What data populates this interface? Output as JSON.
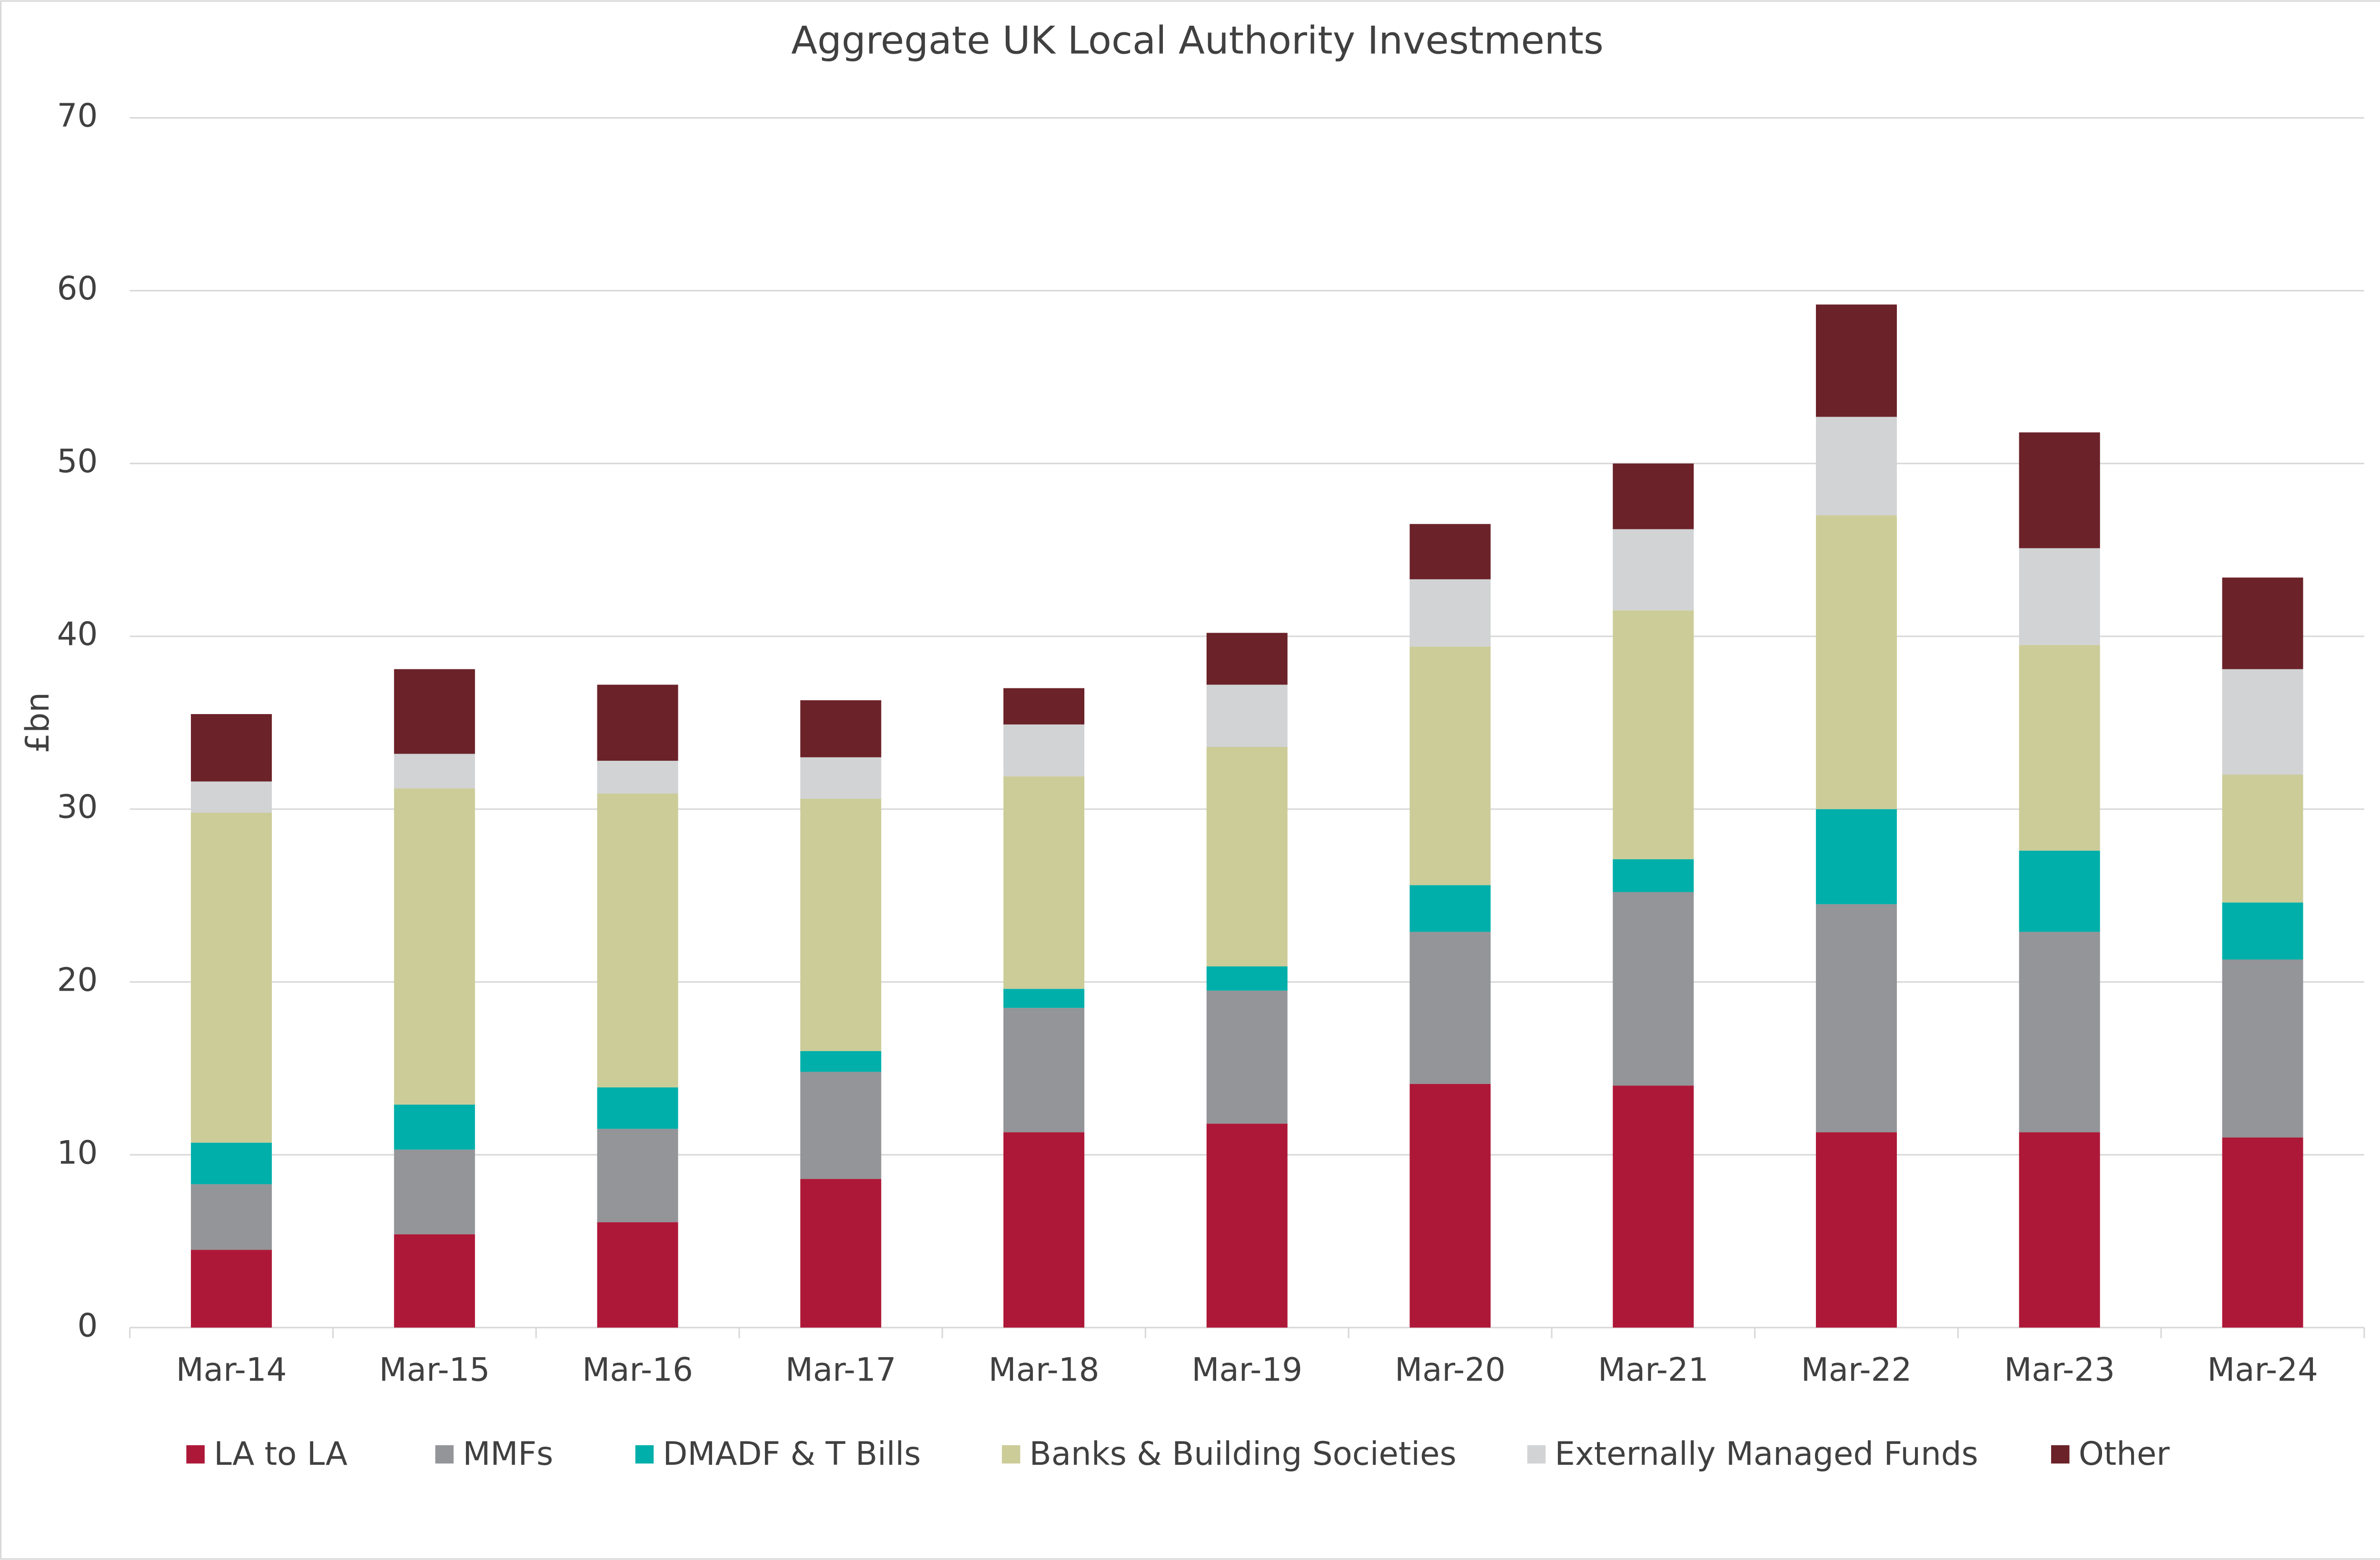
{
  "chart_data": {
    "type": "stacked-bar",
    "title": "Aggregate UK Local Authority Investments",
    "y_label": "£bn",
    "categories": [
      "Mar-14",
      "Mar-15",
      "Mar-16",
      "Mar-17",
      "Mar-18",
      "Mar-19",
      "Mar-20",
      "Mar-21",
      "Mar-22",
      "Mar-23",
      "Mar-24"
    ],
    "series": [
      {
        "name": "LA to LA",
        "color": "#ae1838",
        "values": [
          4.5,
          5.4,
          6.1,
          8.6,
          11.3,
          11.8,
          14.1,
          14.0,
          11.3,
          11.3,
          11.0
        ]
      },
      {
        "name": "MMFs",
        "color": "#939598",
        "values": [
          3.8,
          4.9,
          5.4,
          6.2,
          7.2,
          7.7,
          8.8,
          11.2,
          13.2,
          11.6,
          10.3
        ]
      },
      {
        "name": "DMADF & T Bills",
        "color": "#00afaa",
        "values": [
          2.4,
          2.6,
          2.4,
          1.2,
          1.1,
          1.4,
          2.7,
          1.9,
          5.5,
          4.7,
          3.3
        ]
      },
      {
        "name": "Banks & Building Societies",
        "color": "#cccc99",
        "values": [
          19.1,
          18.3,
          17.0,
          14.6,
          12.3,
          12.7,
          13.8,
          14.4,
          17.0,
          11.9,
          7.4
        ]
      },
      {
        "name": "Externally Managed Funds",
        "color": "#d1d3d4",
        "values": [
          1.8,
          2.0,
          1.9,
          2.4,
          3.0,
          3.6,
          3.9,
          4.7,
          5.7,
          5.6,
          6.1
        ]
      },
      {
        "name": "Other",
        "color": "#6b2229",
        "values": [
          3.9,
          4.9,
          4.4,
          3.3,
          2.1,
          3.0,
          3.2,
          3.8,
          6.5,
          6.7,
          5.3
        ]
      }
    ],
    "ylim": [
      0,
      70
    ],
    "yticks": [
      0,
      10,
      20,
      30,
      40,
      50,
      60,
      70
    ],
    "grid": true
  }
}
